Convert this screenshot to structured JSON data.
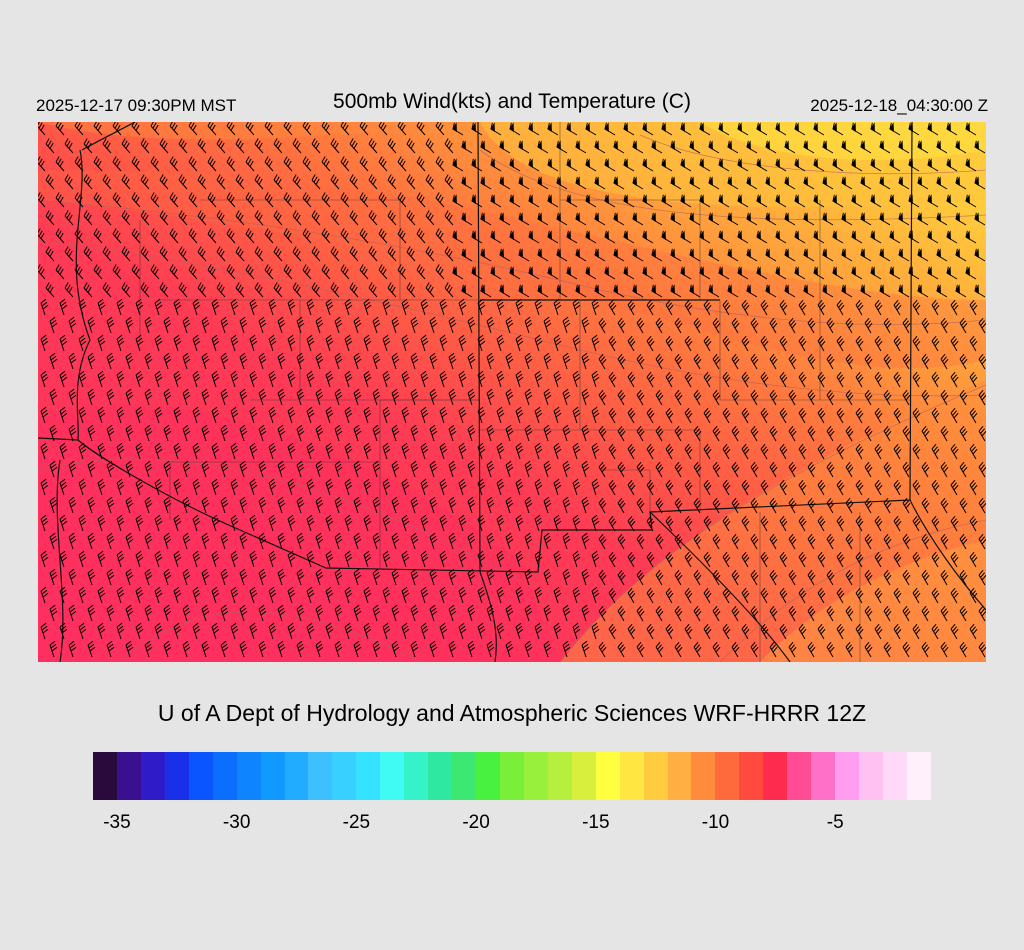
{
  "header": {
    "valid_local": "2025-12-17 09:30PM MST",
    "title": "500mb Wind(kts) and Temperature (C)",
    "valid_utc": "2025-12-18_04:30:00 Z"
  },
  "footer": {
    "credit": "U of A Dept of Hydrology and Atmospheric Sciences WRF-HRRR 12Z"
  },
  "colorbar": {
    "colors": [
      "#2a0a3c",
      "#3a1090",
      "#2d1cc8",
      "#1a30e8",
      "#0a55ff",
      "#0c6eff",
      "#0f84ff",
      "#1099ff",
      "#22acff",
      "#3cc0ff",
      "#38d0ff",
      "#35e2ff",
      "#40faf4",
      "#36f2c8",
      "#2ee8a0",
      "#3ce872",
      "#48f040",
      "#7aef3a",
      "#98f03c",
      "#b6f03e",
      "#d8f03c",
      "#ffff40",
      "#ffe640",
      "#ffcc40",
      "#ffb040",
      "#ff8c3c",
      "#ff6a3c",
      "#ff4a40",
      "#ff2c50",
      "#ff4c94",
      "#ff70c8",
      "#ff9ef0",
      "#ffc2f0",
      "#ffdaf8",
      "#fff0fc"
    ],
    "ticks": [
      "-35",
      "-30",
      "-25",
      "-20",
      "-15",
      "-10",
      "-5"
    ],
    "tick_values": [
      -35,
      -30,
      -25,
      -20,
      -15,
      -10,
      -5
    ],
    "range": [
      -36,
      -1
    ]
  },
  "map": {
    "colors": {
      "cold": "#ff3a58",
      "mid": "#ff5c45",
      "warm": "#ff8c3c",
      "warmer": "#ffac3c",
      "hot": "#ffd83c",
      "frame": "#d3d3d3",
      "lines": "#111111",
      "contour": "#b06060"
    }
  }
}
